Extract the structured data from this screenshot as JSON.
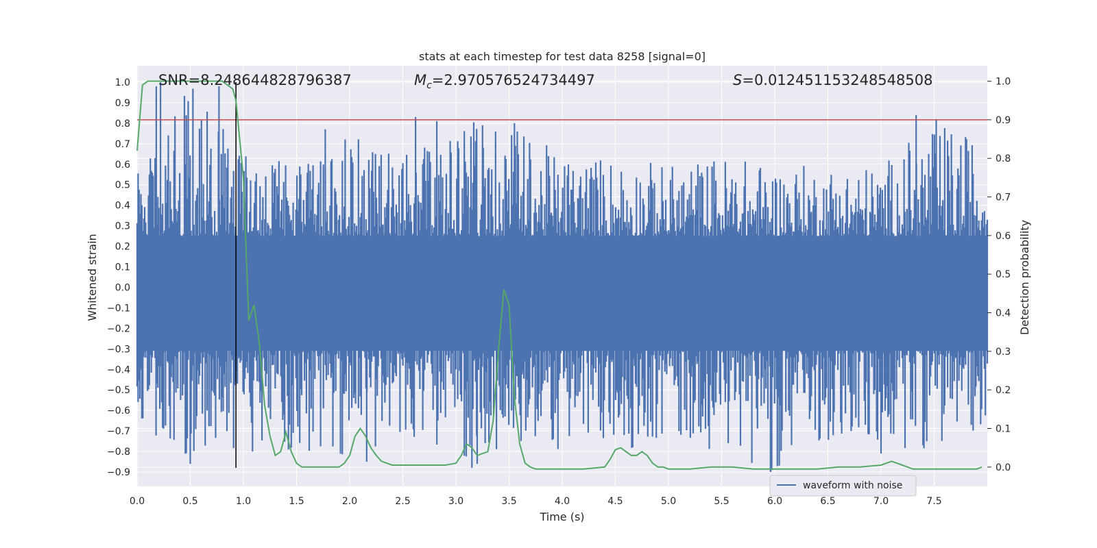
{
  "chart_data": {
    "type": "line",
    "title": "stats at each timestep for test data 8258 [signal=0]",
    "xlabel": "Time (s)",
    "ylabel_left": "Whitened strain",
    "ylabel_right": "Detection probability",
    "xlim": [
      0.0,
      8.0
    ],
    "ylim_left": [
      -0.97,
      1.08
    ],
    "ylim_right": [
      -0.05,
      1.04
    ],
    "x_ticks": [
      "0.0",
      "0.5",
      "1.0",
      "1.5",
      "2.0",
      "2.5",
      "3.0",
      "3.5",
      "4.0",
      "4.5",
      "5.0",
      "5.5",
      "6.0",
      "6.5",
      "7.0",
      "7.5"
    ],
    "y_ticks_left": [
      "-0.9",
      "-0.8",
      "-0.7",
      "-0.6",
      "-0.5",
      "-0.4",
      "-0.3",
      "-0.2",
      "-0.1",
      "0.0",
      "0.1",
      "0.2",
      "0.3",
      "0.4",
      "0.5",
      "0.6",
      "0.7",
      "0.8",
      "0.9",
      "1.0"
    ],
    "y_ticks_right": [
      "0.0",
      "0.1",
      "0.2",
      "0.3",
      "0.4",
      "0.5",
      "0.6",
      "0.7",
      "0.8",
      "0.9",
      "1.0"
    ],
    "grid": true,
    "colors": {
      "waveform": "#4c72b0",
      "probability": "#55a868",
      "threshold": "#c44e52",
      "marker": "#000000",
      "background": "#eaeaf2"
    },
    "annotations": {
      "snr_label": "SNR=8.248644828796387",
      "mc_symbol": "M",
      "mc_sub": "c",
      "mc_value": "=2.970576524734497",
      "s_symbol": "S",
      "s_value": "=0.012451153248548508"
    },
    "threshold_probability": 0.9,
    "marker_time": 0.93,
    "legend": {
      "label": "waveform with noise",
      "location": "lower-right"
    },
    "series": [
      {
        "name": "Detection probability",
        "axis": "right",
        "x": [
          0.0,
          0.05,
          0.1,
          0.15,
          0.2,
          0.25,
          0.3,
          0.35,
          0.4,
          0.45,
          0.5,
          0.55,
          0.6,
          0.65,
          0.7,
          0.75,
          0.8,
          0.85,
          0.9,
          0.93,
          1.0,
          1.05,
          1.1,
          1.15,
          1.2,
          1.25,
          1.3,
          1.35,
          1.4,
          1.45,
          1.5,
          1.55,
          1.6,
          1.7,
          1.8,
          1.9,
          1.95,
          2.0,
          2.05,
          2.1,
          2.15,
          2.2,
          2.25,
          2.3,
          2.4,
          2.5,
          2.6,
          2.7,
          2.8,
          2.9,
          3.0,
          3.05,
          3.1,
          3.15,
          3.2,
          3.25,
          3.3,
          3.35,
          3.4,
          3.45,
          3.5,
          3.55,
          3.6,
          3.65,
          3.7,
          3.75,
          3.8,
          3.9,
          4.0,
          4.2,
          4.4,
          4.45,
          4.5,
          4.55,
          4.6,
          4.65,
          4.7,
          4.75,
          4.8,
          4.85,
          4.9,
          4.95,
          5.0,
          5.2,
          5.4,
          5.6,
          5.8,
          6.0,
          6.2,
          6.4,
          6.6,
          6.8,
          7.0,
          7.05,
          7.1,
          7.15,
          7.2,
          7.25,
          7.3,
          7.5,
          7.7,
          7.9,
          7.95
        ],
        "values": [
          0.82,
          0.99,
          1.0,
          1.0,
          1.0,
          1.0,
          1.0,
          1.0,
          1.0,
          1.0,
          1.0,
          1.0,
          1.0,
          1.0,
          1.0,
          1.0,
          1.0,
          0.99,
          0.98,
          0.95,
          0.75,
          0.38,
          0.42,
          0.32,
          0.16,
          0.08,
          0.03,
          0.04,
          0.09,
          0.04,
          0.01,
          0.0,
          0.0,
          0.0,
          0.0,
          0.0,
          0.01,
          0.03,
          0.08,
          0.1,
          0.08,
          0.05,
          0.03,
          0.015,
          0.005,
          0.005,
          0.005,
          0.005,
          0.005,
          0.005,
          0.01,
          0.03,
          0.06,
          0.05,
          0.03,
          0.035,
          0.04,
          0.12,
          0.3,
          0.46,
          0.42,
          0.18,
          0.06,
          0.01,
          0.0,
          -0.005,
          -0.005,
          -0.005,
          -0.005,
          -0.005,
          0.0,
          0.02,
          0.045,
          0.05,
          0.04,
          0.03,
          0.03,
          0.04,
          0.03,
          0.01,
          0.0,
          0.0,
          -0.005,
          -0.005,
          0.0,
          0.0,
          -0.005,
          -0.005,
          -0.005,
          -0.005,
          0.0,
          0.0,
          0.005,
          0.01,
          0.015,
          0.01,
          0.005,
          0.0,
          -0.005,
          -0.005,
          -0.005,
          -0.005,
          0.0
        ]
      },
      {
        "name": "waveform with noise",
        "axis": "left",
        "x_range": [
          0.0,
          8.0
        ],
        "sample_count": 900,
        "envelope_x": [
          0.0,
          0.5,
          1.0,
          1.5,
          2.0,
          2.5,
          3.0,
          3.5,
          4.0,
          4.5,
          5.0,
          5.5,
          6.0,
          6.5,
          7.0,
          7.5,
          8.0
        ],
        "envelope_max": [
          0.55,
          1.0,
          0.65,
          0.6,
          0.75,
          0.65,
          0.83,
          0.8,
          0.65,
          0.65,
          0.6,
          0.65,
          0.6,
          0.6,
          0.6,
          0.83,
          0.7
        ],
        "envelope_min": [
          -0.75,
          -0.87,
          -0.8,
          -0.8,
          -0.87,
          -0.7,
          -0.88,
          -0.8,
          -0.8,
          -0.8,
          -0.75,
          -0.8,
          -0.9,
          -0.75,
          -0.81,
          -0.78,
          -0.7
        ],
        "peak_times": [
          0.18,
          0.22,
          0.77,
          1.77,
          2.62,
          2.82,
          3.25,
          3.55,
          7.33
        ],
        "peak_values": [
          0.98,
          1.0,
          0.98,
          0.77,
          0.83,
          0.81,
          0.79,
          0.8,
          0.84
        ],
        "trough_times": [
          0.5,
          2.16,
          3.15,
          3.2,
          5.96,
          7.0
        ],
        "trough_values": [
          -0.86,
          -0.85,
          -0.88,
          -0.86,
          -0.9,
          -0.81
        ]
      }
    ]
  }
}
